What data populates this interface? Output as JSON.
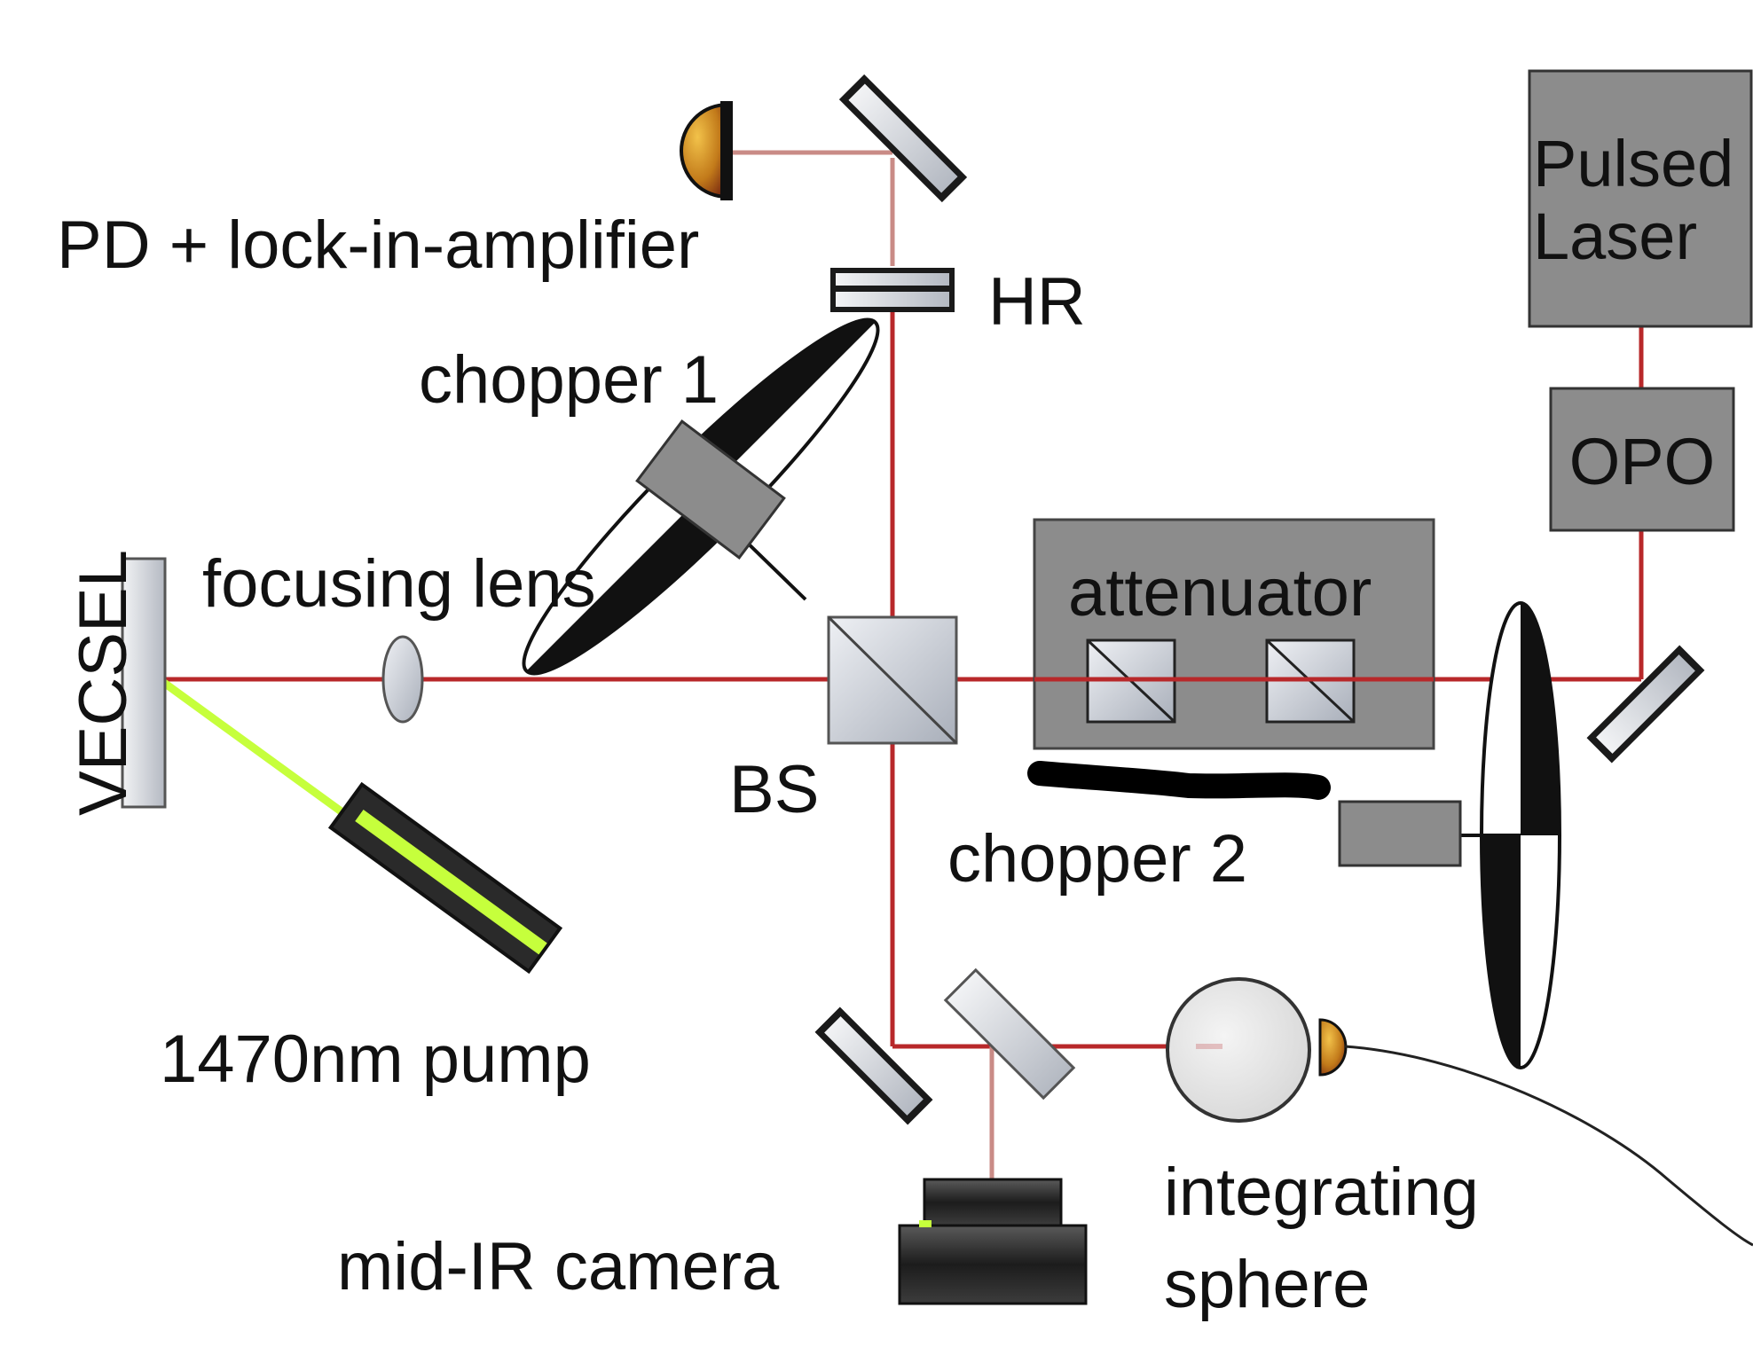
{
  "labels": {
    "pd": "PD + lock-in-amplifier",
    "hr": "HR",
    "chopper1": "chopper 1",
    "vecsel": "VECSEL",
    "focusing_lens": "focusing lens",
    "bs": "BS",
    "attenuator": "attenuator",
    "pulsed_laser_line1": "Pulsed",
    "pulsed_laser_line2": "Laser",
    "opo": "OPO",
    "chopper2": "chopper 2",
    "pump": "1470nm pump",
    "camera": "mid-IR camera",
    "sphere_line1": "integrating",
    "sphere_line2": "sphere"
  },
  "colors": {
    "beam": "#b8282a",
    "beam_faint": "#c98b86",
    "pump_beam": "#c6ff3c",
    "box_fill": "#8c8c8c",
    "optic_fill": "#c8ccd4",
    "detector_fill": "#c97a1c"
  }
}
